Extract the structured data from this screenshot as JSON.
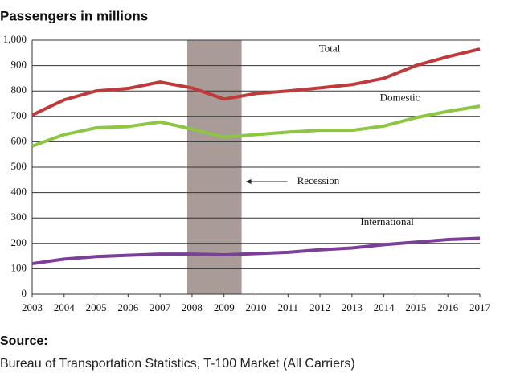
{
  "chart_data": {
    "type": "line",
    "title": "Passengers in millions",
    "x": [
      2003,
      2004,
      2005,
      2006,
      2007,
      2008,
      2009,
      2010,
      2011,
      2012,
      2013,
      2014,
      2015,
      2016,
      2017
    ],
    "xlim": [
      2003,
      2017
    ],
    "xticks": [
      2003,
      2004,
      2005,
      2006,
      2007,
      2008,
      2009,
      2010,
      2011,
      2012,
      2013,
      2014,
      2015,
      2016,
      2017
    ],
    "ylim": [
      0,
      1000
    ],
    "yticks": [
      0,
      100,
      200,
      300,
      400,
      500,
      600,
      700,
      800,
      900,
      {
        "value": 1000,
        "label": "1,000"
      }
    ],
    "grid": true,
    "series": [
      {
        "name": "Total",
        "color": "#c0393b",
        "values": [
          705,
          765,
          800,
          810,
          835,
          812,
          768,
          790,
          800,
          812,
          825,
          850,
          900,
          935,
          965
        ]
      },
      {
        "name": "Domestic",
        "color": "#8dc641",
        "values": [
          583,
          628,
          655,
          660,
          678,
          650,
          618,
          628,
          638,
          645,
          645,
          662,
          695,
          720,
          740
        ]
      },
      {
        "name": "International",
        "color": "#7b3f99",
        "values": [
          120,
          138,
          148,
          153,
          158,
          158,
          155,
          160,
          165,
          175,
          182,
          195,
          205,
          215,
          220
        ]
      }
    ],
    "shade": {
      "from": 2007.85,
      "to": 2009.55,
      "color": "#a99b97",
      "label": "Recession"
    },
    "source_heading": "Source:",
    "source": "Bureau of Transportation Statistics, T-100 Market (All Carriers)"
  }
}
